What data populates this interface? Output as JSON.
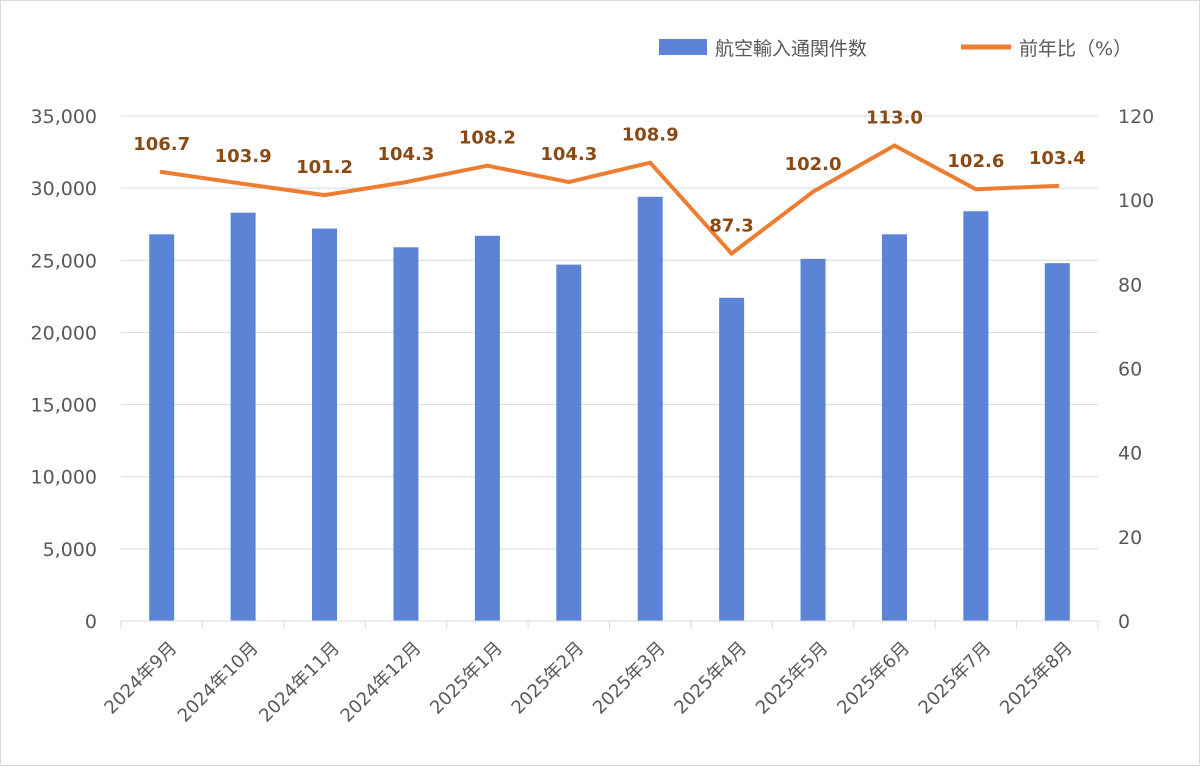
{
  "chart_data": {
    "type": "bar+line",
    "categories": [
      "2024年9月",
      "2024年10月",
      "2024年11月",
      "2024年12月",
      "2025年1月",
      "2025年2月",
      "2025年3月",
      "2025年4月",
      "2025年5月",
      "2025年6月",
      "2025年7月",
      "2025年8月"
    ],
    "series": [
      {
        "name": "航空輸入通関件数",
        "type": "bar",
        "axis": "left",
        "color": "#5b84d6",
        "values": [
          26800,
          28300,
          27200,
          25900,
          26700,
          24700,
          29400,
          22400,
          25100,
          26800,
          28400,
          24800
        ]
      },
      {
        "name": "前年比（%）",
        "type": "line",
        "axis": "right",
        "color": "#ed7d31",
        "values": [
          106.7,
          103.9,
          101.2,
          104.3,
          108.2,
          104.3,
          108.9,
          87.3,
          102.0,
          113.0,
          102.6,
          103.4
        ],
        "labels": [
          "106.7",
          "103.9",
          "101.2",
          "104.3",
          "108.2",
          "104.3",
          "108.9",
          "87.3",
          "102.0",
          "113.0",
          "102.6",
          "103.4"
        ]
      }
    ],
    "y_left": {
      "min": 0,
      "max": 35000,
      "ticks": [
        "0",
        "5,000",
        "10,000",
        "15,000",
        "20,000",
        "25,000",
        "30,000",
        "35,000"
      ]
    },
    "y_right": {
      "min": 0,
      "max": 120,
      "ticks": [
        "0",
        "20",
        "40",
        "60",
        "80",
        "100",
        "120"
      ]
    },
    "grid": true,
    "legend_position": "top-right",
    "label_color": "#8a4a14",
    "gridline_color": "#d9d9d9"
  }
}
